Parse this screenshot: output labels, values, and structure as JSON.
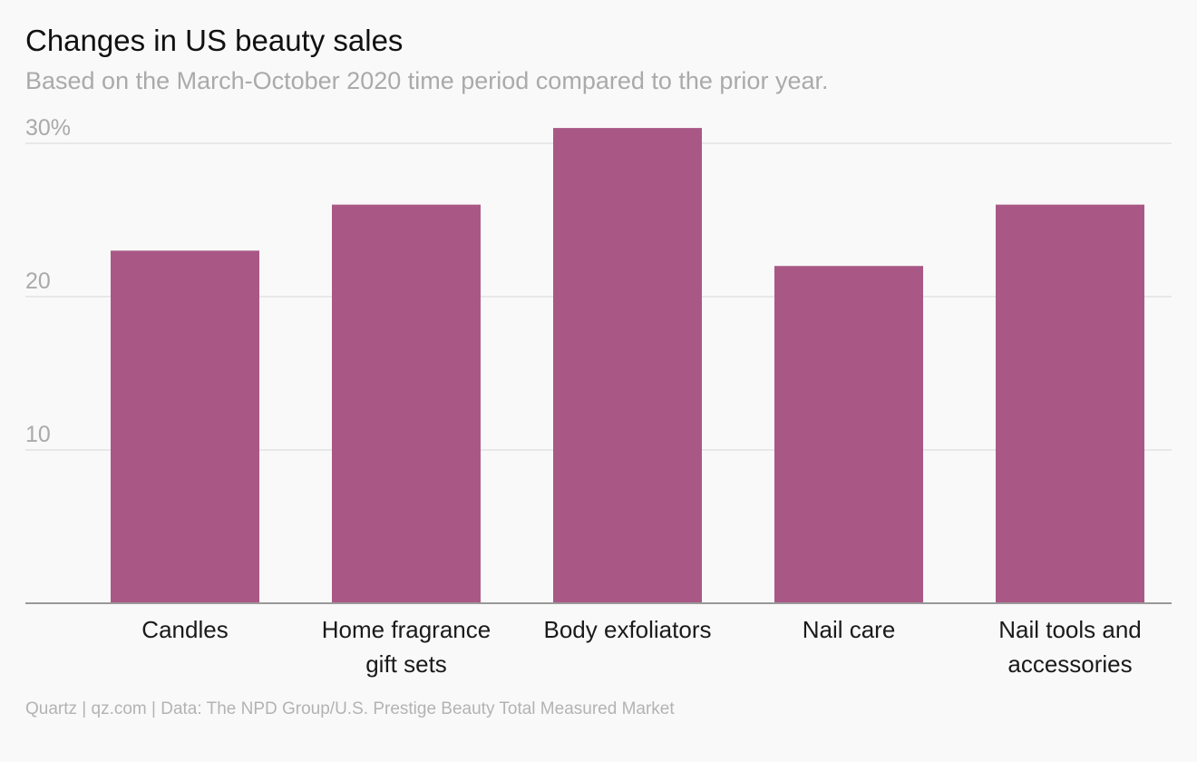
{
  "title": "Changes in US beauty sales",
  "subtitle": "Based on the March-October 2020 time period compared to the prior year.",
  "footer": "Quartz | qz.com | Data: The NPD Group/U.S. Prestige Beauty Total Measured Market",
  "colors": {
    "bar": "#a95886",
    "grid": "#e3e3e3",
    "axis": "#999999"
  },
  "chart_data": {
    "type": "bar",
    "title": "Changes in US beauty sales",
    "subtitle": "Based on the March-October 2020 time period compared to the prior year.",
    "xlabel": "",
    "ylabel": "",
    "categories": [
      [
        "Candles"
      ],
      [
        "Home fragrance",
        "gift sets"
      ],
      [
        "Body exfoliators"
      ],
      [
        "Nail care"
      ],
      [
        "Nail tools and",
        "accessories"
      ]
    ],
    "values": [
      23,
      26,
      31,
      22,
      26
    ],
    "ylim": [
      0,
      30
    ],
    "yticks": [
      10,
      20,
      30
    ],
    "ytick_labels": [
      "10",
      "20",
      "30%"
    ],
    "grid": true,
    "legend": "none"
  }
}
